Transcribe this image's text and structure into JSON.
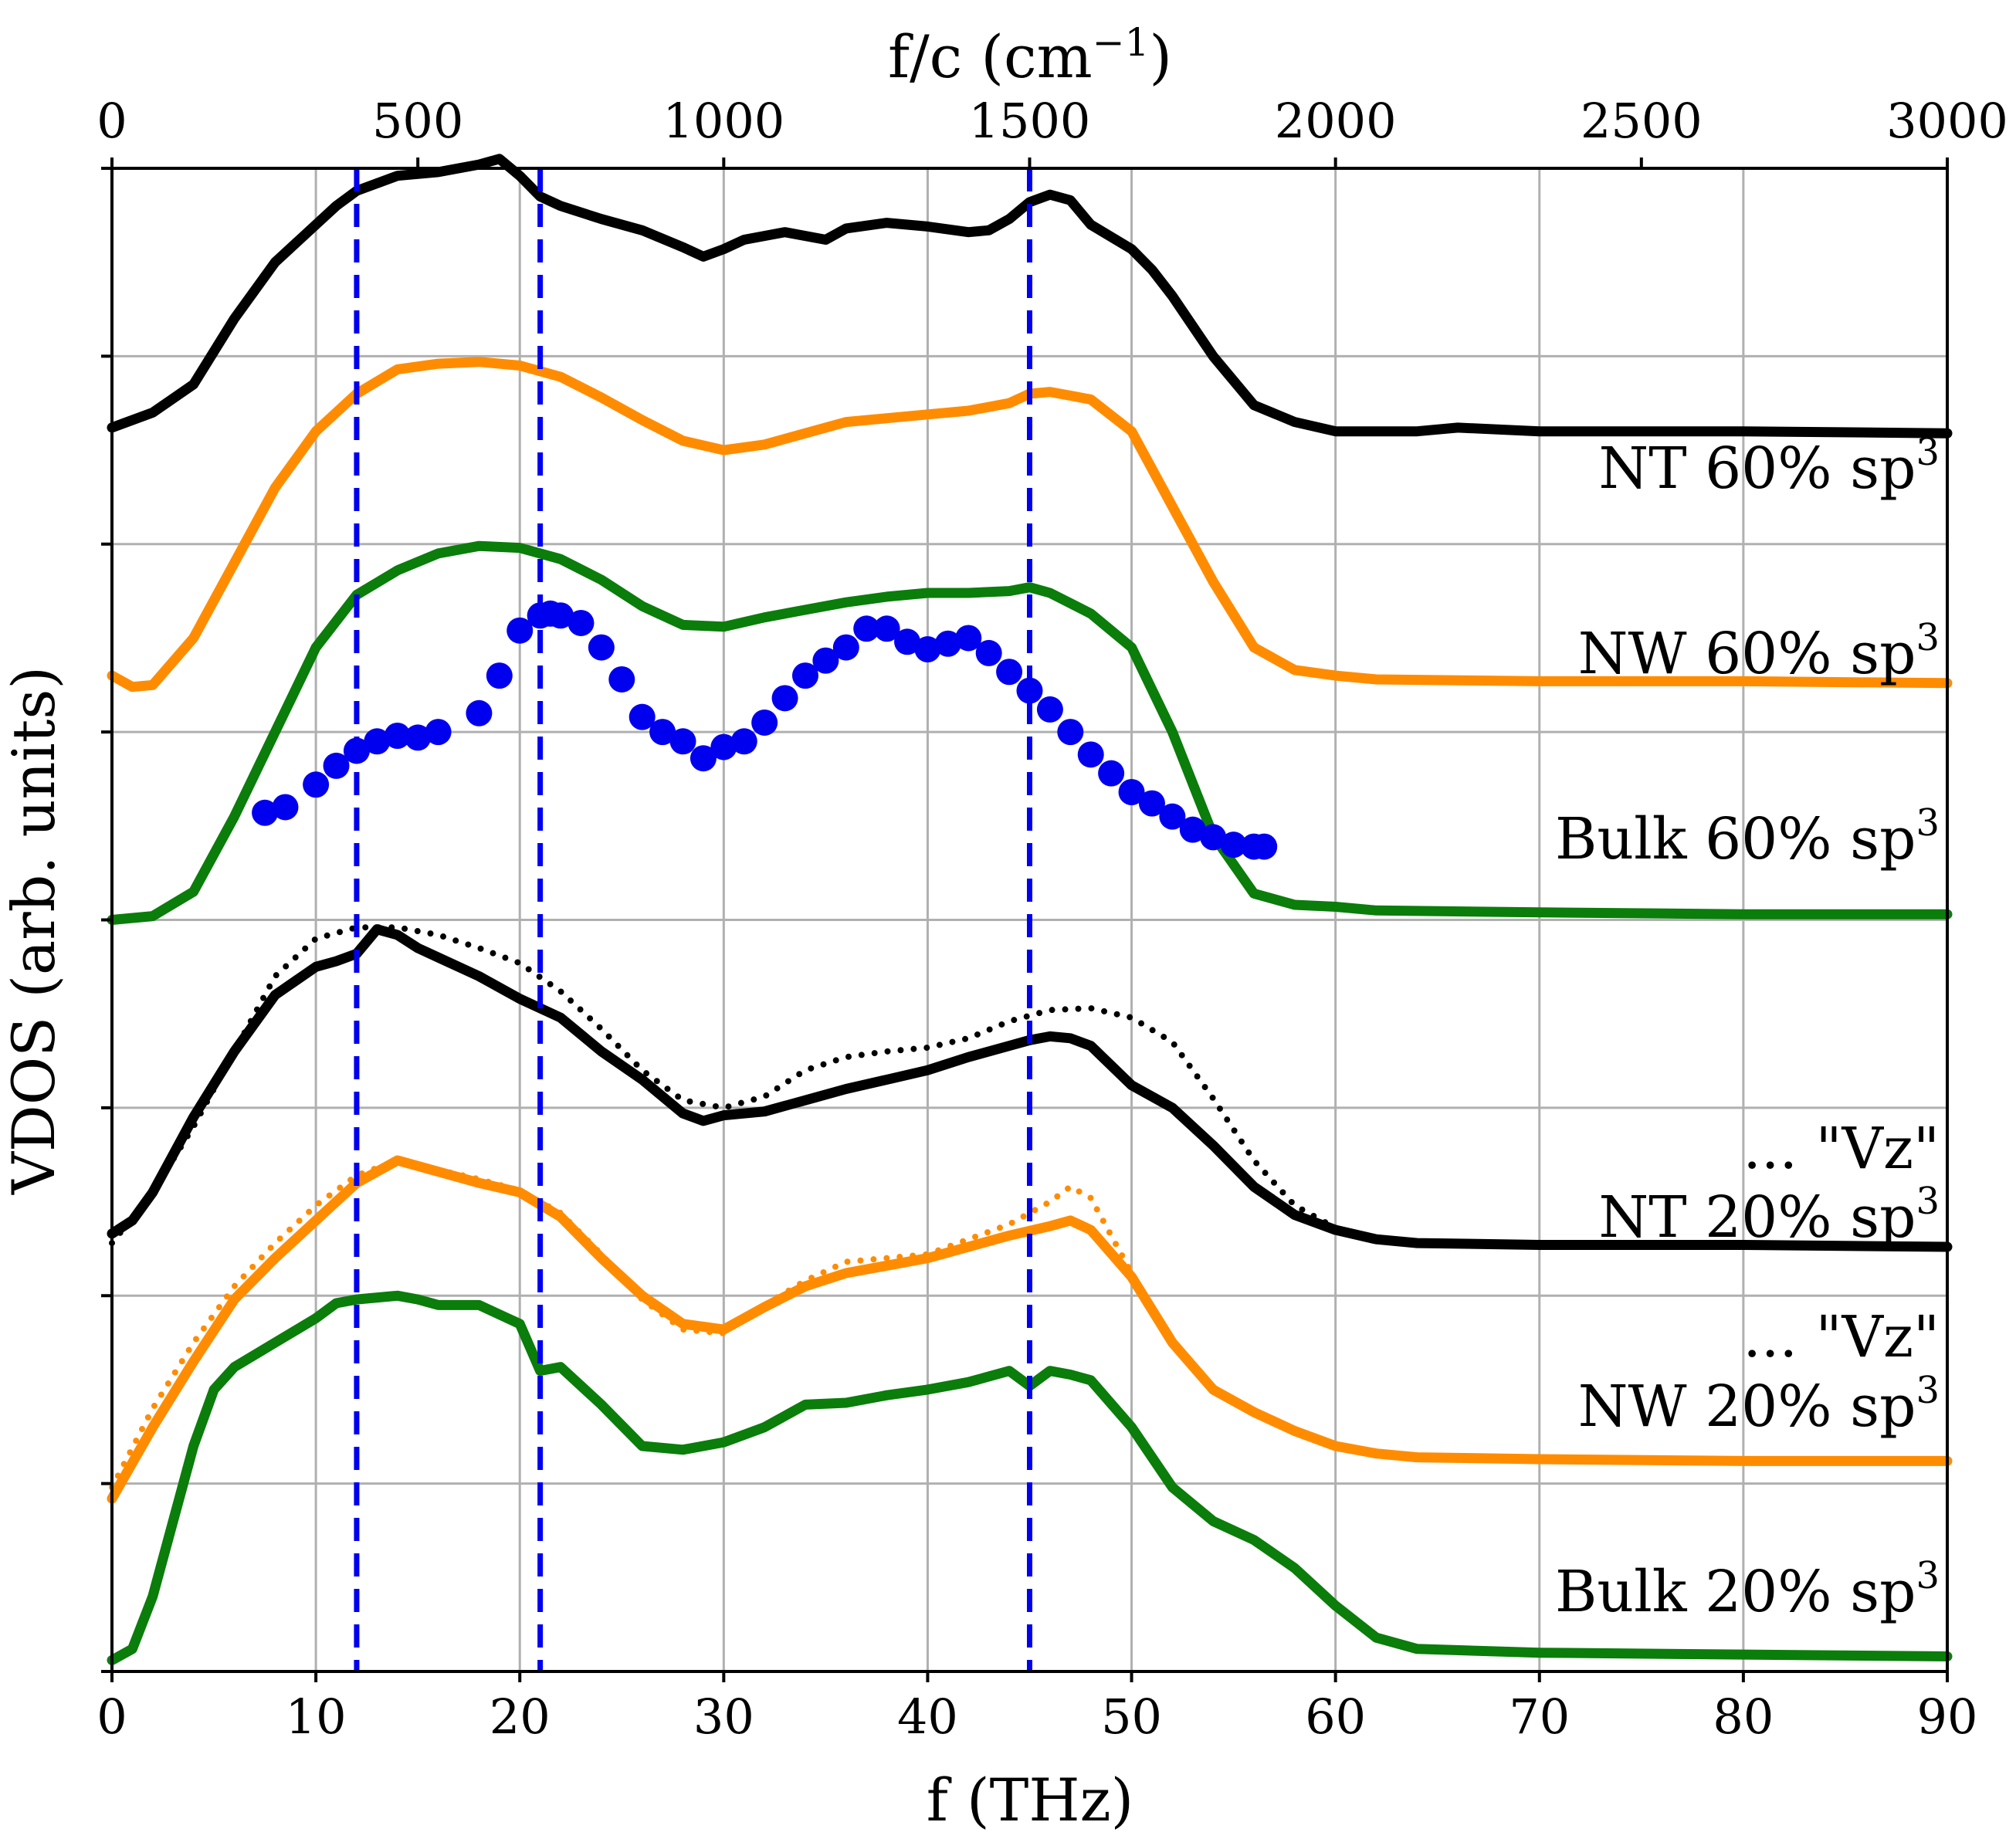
{
  "chart_data": {
    "type": "line",
    "title": "",
    "xlabel": "f (THz)",
    "ylabel": "VDOS (arb. units)",
    "x2label_prefix": "f/c (cm",
    "x2label_sup": "−1",
    "x2label_suffix": ")",
    "xlim": [
      0,
      90
    ],
    "ylim": [
      0,
      8
    ],
    "x2lim": [
      0,
      3000
    ],
    "xticks": [
      "0",
      "10",
      "20",
      "30",
      "40",
      "50",
      "60",
      "70",
      "80",
      "90"
    ],
    "x2ticks": [
      "0",
      "500",
      "1000",
      "1500",
      "2000",
      "2500",
      "3000"
    ],
    "vertical_dashed_lines_thz": [
      12,
      21,
      45
    ],
    "colors": {
      "black": "#000000",
      "orange": "#ff8c00",
      "green": "#0a7d0a",
      "blue": "#0000ee",
      "vline": "#0000ee",
      "grid": "#b0b0b0"
    },
    "labels": [
      {
        "text": "NT 60% sp",
        "sup": "3",
        "id": "nt60"
      },
      {
        "text": "NW 60% sp",
        "sup": "3",
        "id": "nw60"
      },
      {
        "text": "Bulk 60% sp",
        "sup": "3",
        "id": "bulk60"
      },
      {
        "text": "... \"Vz\"",
        "sup": "",
        "id": "vz-nt"
      },
      {
        "text": "NT 20% sp",
        "sup": "3",
        "id": "nt20"
      },
      {
        "text": "... \"Vz\"",
        "sup": "",
        "id": "vz-nw"
      },
      {
        "text": "NW 20% sp",
        "sup": "3",
        "id": "nw20"
      },
      {
        "text": "Bulk 20% sp",
        "sup": "3",
        "id": "bulk20"
      }
    ],
    "series": [
      {
        "name": "NT 60% sp3",
        "color": "black",
        "style": "solid",
        "x": [
          0,
          2,
          4,
          6,
          8,
          10,
          11,
          12,
          14,
          16,
          18,
          19,
          20,
          21,
          22,
          24,
          26,
          28,
          29,
          30,
          31,
          33,
          35,
          36,
          38,
          40,
          42,
          43,
          44,
          45,
          46,
          47,
          48,
          50,
          51,
          52,
          54,
          56,
          58,
          60,
          62,
          64,
          66,
          70,
          80,
          90
        ],
        "y": [
          6.62,
          6.7,
          6.85,
          7.2,
          7.5,
          7.7,
          7.8,
          7.88,
          7.96,
          7.98,
          8.02,
          8.05,
          7.96,
          7.85,
          7.8,
          7.73,
          7.67,
          7.58,
          7.53,
          7.57,
          7.62,
          7.66,
          7.62,
          7.68,
          7.71,
          7.69,
          7.66,
          7.67,
          7.73,
          7.82,
          7.86,
          7.83,
          7.7,
          7.57,
          7.46,
          7.32,
          7.0,
          6.74,
          6.65,
          6.6,
          6.6,
          6.6,
          6.62,
          6.6,
          6.6,
          6.59
        ]
      },
      {
        "name": "NW 60% sp3",
        "color": "orange",
        "style": "solid",
        "x": [
          0,
          1,
          2,
          4,
          6,
          8,
          10,
          12,
          14,
          16,
          18,
          20,
          22,
          24,
          26,
          28,
          30,
          32,
          34,
          36,
          38,
          40,
          42,
          44,
          45,
          46,
          48,
          50,
          52,
          54,
          56,
          58,
          60,
          62,
          70,
          80,
          90
        ],
        "y": [
          5.3,
          5.24,
          5.25,
          5.5,
          5.9,
          6.3,
          6.6,
          6.8,
          6.93,
          6.96,
          6.97,
          6.95,
          6.89,
          6.78,
          6.66,
          6.55,
          6.5,
          6.53,
          6.59,
          6.65,
          6.67,
          6.69,
          6.71,
          6.75,
          6.8,
          6.81,
          6.77,
          6.6,
          6.2,
          5.8,
          5.45,
          5.33,
          5.3,
          5.28,
          5.27,
          5.27,
          5.26
        ]
      },
      {
        "name": "Bulk 60% sp3",
        "color": "green",
        "style": "solid",
        "x": [
          0,
          2,
          4,
          6,
          8,
          10,
          12,
          14,
          16,
          18,
          20,
          22,
          24,
          26,
          28,
          30,
          32,
          34,
          36,
          38,
          40,
          42,
          44,
          45,
          46,
          48,
          50,
          52,
          54,
          56,
          58,
          60,
          62,
          70,
          80,
          90
        ],
        "y": [
          4.0,
          4.02,
          4.15,
          4.55,
          5.0,
          5.45,
          5.73,
          5.86,
          5.95,
          5.99,
          5.98,
          5.92,
          5.81,
          5.67,
          5.57,
          5.56,
          5.61,
          5.65,
          5.69,
          5.72,
          5.74,
          5.74,
          5.75,
          5.77,
          5.74,
          5.63,
          5.45,
          5.0,
          4.45,
          4.14,
          4.08,
          4.07,
          4.05,
          4.04,
          4.03,
          4.03
        ]
      },
      {
        "name": "Experimental VDOS",
        "color": "blue",
        "style": "markers",
        "x": [
          7.5,
          8.5,
          10,
          11,
          12,
          13,
          14,
          15,
          16,
          18,
          19,
          20,
          21,
          21.5,
          22,
          23,
          24,
          25,
          26,
          27,
          28,
          29,
          30,
          31,
          32,
          33,
          34,
          35,
          36,
          37,
          38,
          39,
          40,
          41,
          42,
          43,
          44,
          45,
          46,
          47,
          48,
          49,
          50,
          51,
          52,
          53,
          54,
          55,
          56,
          56.5
        ],
        "y": [
          4.57,
          4.6,
          4.72,
          4.82,
          4.9,
          4.95,
          4.98,
          4.97,
          5.0,
          5.1,
          5.3,
          5.54,
          5.62,
          5.63,
          5.62,
          5.58,
          5.45,
          5.28,
          5.08,
          5.0,
          4.95,
          4.86,
          4.92,
          4.95,
          5.05,
          5.18,
          5.3,
          5.38,
          5.45,
          5.55,
          5.55,
          5.48,
          5.44,
          5.47,
          5.5,
          5.42,
          5.32,
          5.22,
          5.12,
          5.0,
          4.88,
          4.78,
          4.68,
          4.62,
          4.55,
          4.48,
          4.44,
          4.4,
          4.39,
          4.39
        ]
      },
      {
        "name": "NT 20% sp3",
        "color": "black",
        "style": "solid",
        "x": [
          0,
          1,
          2,
          3,
          4,
          6,
          8,
          10,
          11,
          12,
          13,
          14,
          15,
          16,
          18,
          20,
          22,
          24,
          26,
          28,
          29,
          30,
          32,
          34,
          36,
          38,
          40,
          42,
          44,
          45,
          46,
          47,
          48,
          50,
          52,
          54,
          56,
          58,
          60,
          62,
          64,
          70,
          80,
          90
        ],
        "y": [
          2.33,
          2.4,
          2.55,
          2.75,
          2.95,
          3.3,
          3.6,
          3.75,
          3.78,
          3.82,
          3.95,
          3.92,
          3.85,
          3.8,
          3.7,
          3.58,
          3.48,
          3.3,
          3.15,
          2.97,
          2.93,
          2.96,
          2.98,
          3.04,
          3.1,
          3.15,
          3.2,
          3.27,
          3.33,
          3.36,
          3.38,
          3.37,
          3.33,
          3.12,
          3.0,
          2.8,
          2.58,
          2.43,
          2.35,
          2.3,
          2.28,
          2.27,
          2.27,
          2.26
        ]
      },
      {
        "name": "NT 20% sp3 Vz",
        "color": "black",
        "style": "dotted",
        "x": [
          0,
          2,
          4,
          6,
          8,
          10,
          12,
          14,
          16,
          18,
          20,
          22,
          24,
          26,
          28,
          30,
          32,
          34,
          36,
          38,
          40,
          42,
          44,
          46,
          48,
          50,
          52,
          54,
          56,
          58,
          60,
          62,
          64,
          66,
          70
        ],
        "y": [
          2.28,
          2.55,
          2.9,
          3.3,
          3.7,
          3.9,
          3.96,
          3.96,
          3.92,
          3.85,
          3.77,
          3.62,
          3.42,
          3.2,
          3.04,
          3.0,
          3.06,
          3.2,
          3.27,
          3.3,
          3.32,
          3.37,
          3.46,
          3.52,
          3.53,
          3.48,
          3.35,
          3.05,
          2.72,
          2.48,
          2.36,
          2.3,
          2.28,
          2.27,
          2.27
        ]
      },
      {
        "name": "NW 20% sp3",
        "color": "orange",
        "style": "solid",
        "x": [
          0,
          2,
          4,
          6,
          8,
          10,
          12,
          14,
          16,
          18,
          20,
          22,
          24,
          26,
          28,
          30,
          32,
          34,
          36,
          38,
          40,
          42,
          44,
          46,
          47,
          48,
          50,
          52,
          54,
          56,
          58,
          60,
          62,
          64,
          70,
          80,
          90
        ],
        "y": [
          0.92,
          1.3,
          1.65,
          1.98,
          2.2,
          2.4,
          2.6,
          2.72,
          2.66,
          2.6,
          2.55,
          2.42,
          2.2,
          2.0,
          1.85,
          1.82,
          1.94,
          2.05,
          2.12,
          2.16,
          2.2,
          2.26,
          2.32,
          2.37,
          2.4,
          2.35,
          2.1,
          1.75,
          1.5,
          1.38,
          1.28,
          1.2,
          1.16,
          1.14,
          1.13,
          1.12,
          1.12
        ]
      },
      {
        "name": "NW 20% sp3 Vz",
        "color": "orange",
        "style": "dotted",
        "x": [
          0,
          2,
          4,
          6,
          8,
          10,
          12,
          14,
          16,
          18,
          20,
          22,
          24,
          26,
          28,
          30,
          32,
          34,
          36,
          38,
          40,
          42,
          44,
          46,
          47,
          48,
          50,
          52,
          54,
          56,
          58,
          60
        ],
        "y": [
          0.98,
          1.4,
          1.75,
          2.05,
          2.28,
          2.48,
          2.64,
          2.72,
          2.67,
          2.62,
          2.56,
          2.44,
          2.22,
          1.98,
          1.82,
          1.8,
          1.95,
          2.08,
          2.18,
          2.2,
          2.22,
          2.3,
          2.38,
          2.5,
          2.58,
          2.52,
          2.12,
          1.76,
          1.5,
          1.38,
          1.28,
          1.2
        ]
      },
      {
        "name": "Bulk 20% sp3",
        "color": "green",
        "style": "solid",
        "x": [
          0,
          1,
          2,
          3,
          4,
          5,
          6,
          8,
          10,
          11,
          12,
          14,
          15,
          16,
          18,
          19,
          20,
          21,
          22,
          24,
          26,
          28,
          30,
          32,
          34,
          36,
          38,
          40,
          42,
          44,
          45,
          46,
          47,
          48,
          50,
          52,
          54,
          56,
          58,
          60,
          62,
          64,
          70,
          80,
          90
        ],
        "y": [
          0.06,
          0.12,
          0.4,
          0.8,
          1.2,
          1.5,
          1.62,
          1.75,
          1.88,
          1.96,
          1.98,
          2.0,
          1.98,
          1.95,
          1.95,
          1.9,
          1.85,
          1.6,
          1.62,
          1.42,
          1.2,
          1.18,
          1.22,
          1.3,
          1.42,
          1.43,
          1.47,
          1.5,
          1.54,
          1.6,
          1.52,
          1.6,
          1.58,
          1.55,
          1.3,
          0.98,
          0.8,
          0.7,
          0.55,
          0.35,
          0.18,
          0.12,
          0.1,
          0.09,
          0.08
        ]
      }
    ]
  }
}
